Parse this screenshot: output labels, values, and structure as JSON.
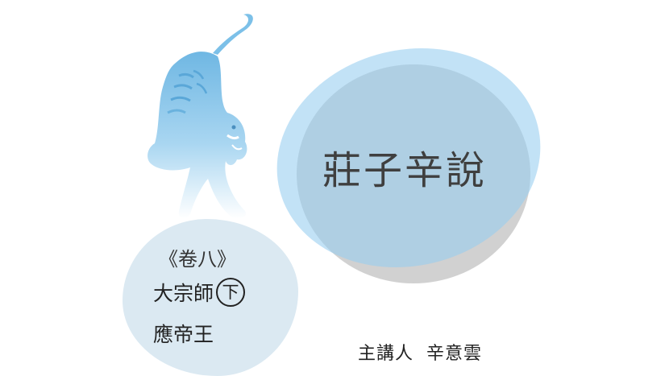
{
  "title": "莊子辛說",
  "volume": "《卷八》",
  "chapters": {
    "first": "大宗師",
    "first_part_marker": "下",
    "second": "應帝王"
  },
  "lecturer": {
    "label": "主講人",
    "name": "辛意雲"
  },
  "colors": {
    "circle_blue": "#96cdf0",
    "circle_gray": "#8c8c8c",
    "blob": "#dbe9f2",
    "tiger_top": "#7ec0e6",
    "tiger_bottom": "#ffffff"
  }
}
